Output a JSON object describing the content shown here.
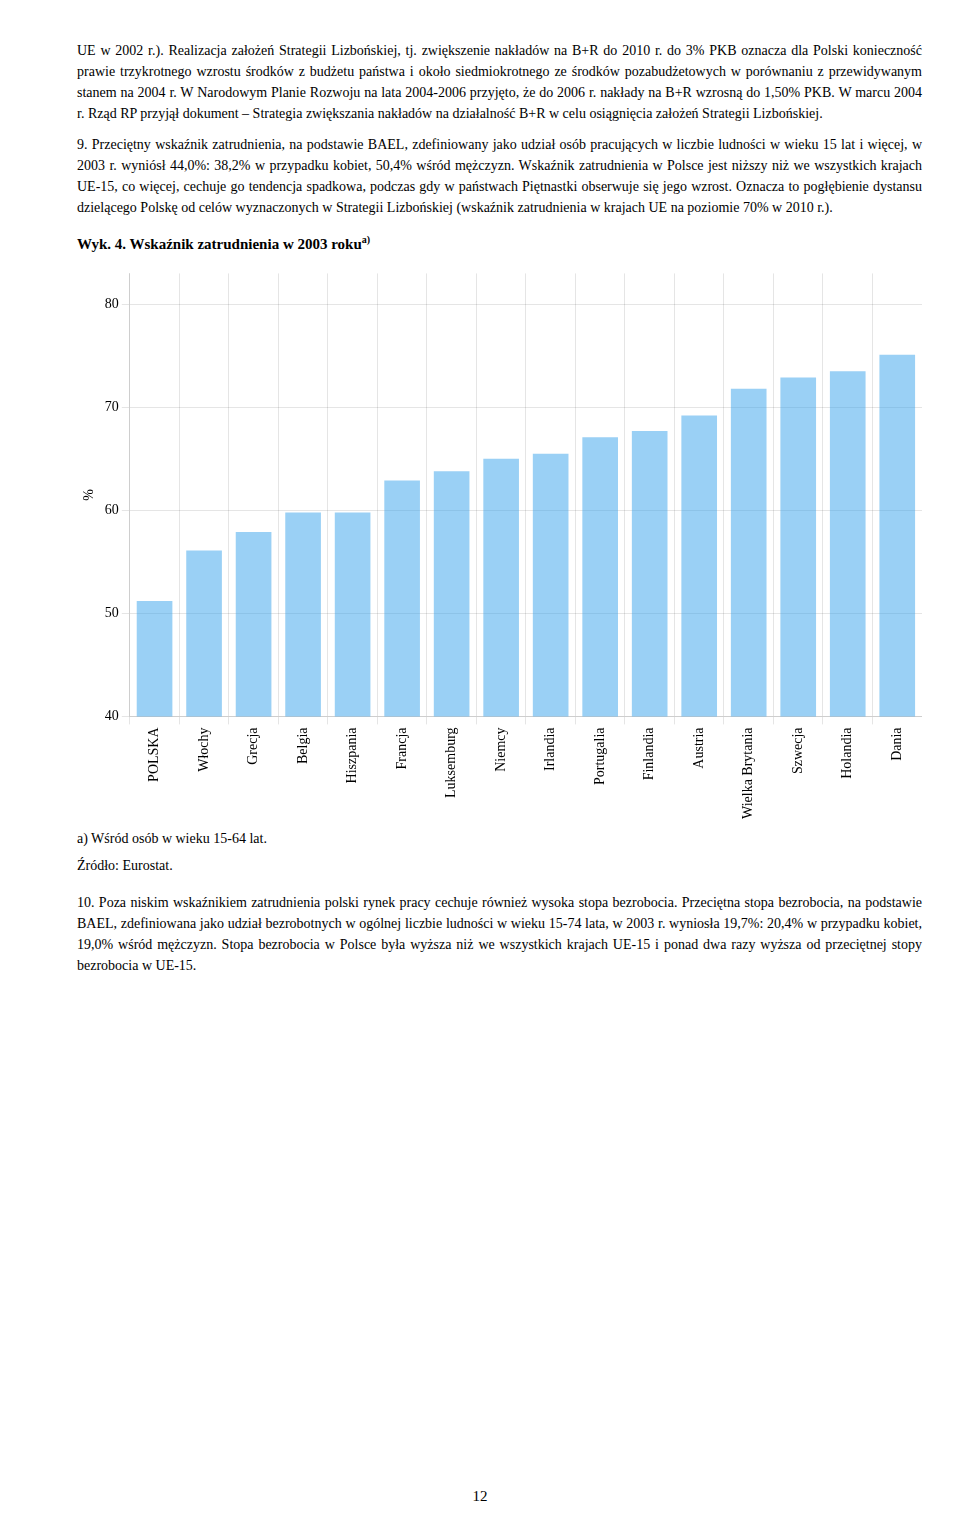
{
  "paragraphs_before": [
    "UE w 2002 r.). Realizacja założeń Strategii Lizbońskiej, tj. zwiększenie nakładów na B+R do 2010 r. do 3% PKB oznacza dla Polski konieczność prawie trzykrotnego wzrostu środków z budżetu państwa i około siedmiokrotnego ze środków pozabudżetowych w porównaniu z przewidywanym stanem na 2004 r. W Narodowym Planie Rozwoju na lata 2004-2006 przyjęto, że do 2006 r. nakłady na B+R wzrosną do 1,50% PKB. W marcu 2004 r. Rząd RP przyjął dokument – Strategia zwiększania nakładów na działalność B+R w celu osiągnięcia założeń Strategii Lizbońskiej.",
    "9. Przeciętny wskaźnik zatrudnienia, na podstawie BAEL, zdefiniowany jako udział osób pracujących w liczbie ludności w wieku 15 lat i więcej, w 2003 r. wyniósł 44,0%: 38,2% w przypadku kobiet, 50,4% wśród mężczyzn. Wskaźnik zatrudnienia w Polsce jest niższy niż we wszystkich krajach UE-15, co więcej, cechuje go tendencja spadkowa, podczas gdy w państwach Piętnastki obserwuje się jego wzrost. Oznacza to pogłębienie dystansu dzielącego Polskę od celów wyznaczonych w Strategii Lizbońskiej (wskaźnik zatrudnienia w krajach UE na poziomie 70% w 2010 r.)."
  ],
  "chart_data": {
    "type": "bar",
    "title": "Wyk. 4. Wskaźnik zatrudnienia w 2003 roku",
    "title_superscript": "a)",
    "ylabel": "%",
    "categories": [
      "POLSKA",
      "Włochy",
      "Grecja",
      "Belgia",
      "Hiszpania",
      "Francja",
      "Luksemburg",
      "Niemcy",
      "Irlandia",
      "Portugalia",
      "Finlandia",
      "Austria",
      "Wielka Brytania",
      "Szwecja",
      "Holandia",
      "Dania"
    ],
    "values": [
      51.2,
      56.1,
      57.9,
      59.8,
      59.8,
      62.9,
      63.8,
      65.0,
      65.5,
      67.1,
      67.7,
      69.2,
      71.8,
      72.9,
      73.5,
      75.1
    ],
    "ylim": [
      40,
      83
    ],
    "yticks": [
      40,
      50,
      60,
      70,
      80
    ],
    "grid": true,
    "footnote": "a) Wśród osób w wieku 15-64 lat.",
    "source": "Źródło: Eurostat."
  },
  "paragraphs_after": [
    "10. Poza niskim wskaźnikiem zatrudnienia polski rynek pracy cechuje również wysoka stopa bezrobocia. Przeciętna stopa bezrobocia, na podstawie BAEL, zdefiniowana jako udział bezrobotnych w ogólnej liczbie ludności w wieku 15-74 lata, w 2003 r. wyniosła 19,7%: 20,4% w przypadku kobiet, 19,0% wśród mężczyzn. Stopa bezrobocia w Polsce była wyższa niż we wszystkich krajach UE-15 i ponad dwa razy wyższa od przeciętnej stopy bezrobocia w UE-15."
  ],
  "page_number": "12"
}
